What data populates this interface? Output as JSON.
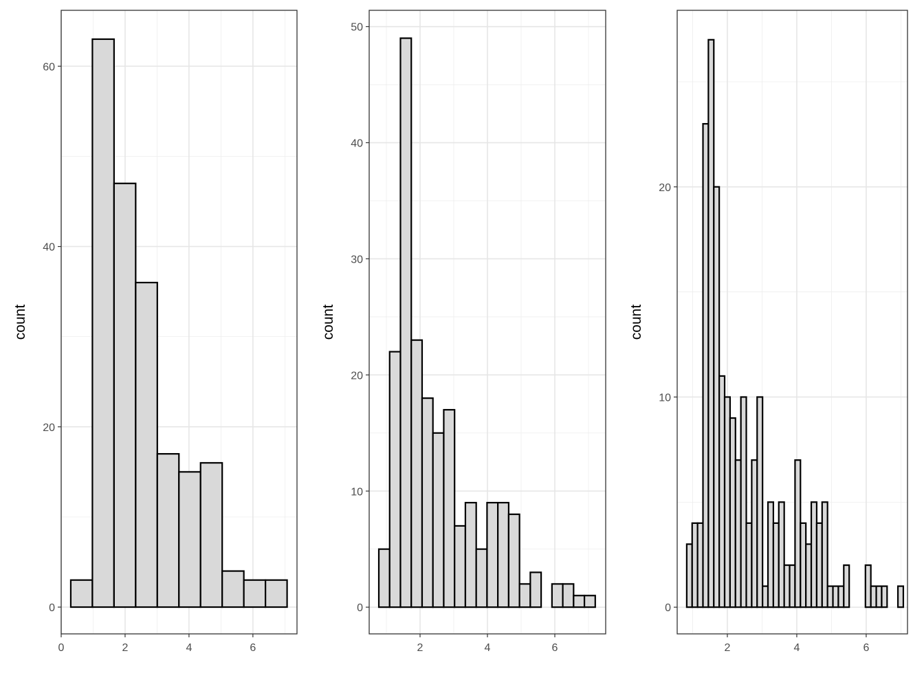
{
  "chart_data": [
    {
      "type": "bar",
      "subtype": "histogram",
      "ylabel": "count",
      "xlabel": "",
      "bin_range": [
        0.3,
        7.07
      ],
      "values": [
        3,
        63,
        47,
        36,
        17,
        15,
        16,
        4,
        3,
        3
      ],
      "xlim": [
        0,
        7.38
      ],
      "ylim": [
        -2.97,
        66.2
      ],
      "xticks": [
        0,
        2,
        4,
        6
      ],
      "yticks": [
        0,
        20,
        40,
        60
      ],
      "grid": true,
      "fill": "#d9d9d9",
      "stroke": "#000000"
    },
    {
      "type": "bar",
      "subtype": "histogram",
      "ylabel": "count",
      "xlabel": "",
      "bin_range": [
        0.776,
        7.2
      ],
      "values": [
        5,
        22,
        49,
        23,
        18,
        15,
        17,
        7,
        9,
        5,
        9,
        9,
        8,
        2,
        3,
        0,
        2,
        2,
        1,
        1
      ],
      "xlim": [
        0.49,
        7.51
      ],
      "ylim": [
        -2.3,
        51.4
      ],
      "xticks": [
        2,
        4,
        6
      ],
      "yticks": [
        0,
        10,
        20,
        30,
        40,
        50
      ],
      "grid": true,
      "fill": "#d9d9d9",
      "stroke": "#000000"
    },
    {
      "type": "bar",
      "subtype": "histogram",
      "ylabel": "count",
      "xlabel": "",
      "bin_range": [
        0.83,
        7.07
      ],
      "values": [
        3,
        4,
        4,
        23,
        27,
        20,
        11,
        10,
        9,
        7,
        10,
        4,
        7,
        10,
        1,
        5,
        4,
        5,
        2,
        2,
        7,
        4,
        3,
        5,
        4,
        5,
        1,
        1,
        1,
        2,
        0,
        0,
        0,
        2,
        1,
        1,
        1,
        0,
        0,
        1
      ],
      "xlim": [
        0.555,
        7.19
      ],
      "ylim": [
        -1.27,
        28.4
      ],
      "xticks": [
        2,
        4,
        6
      ],
      "yticks": [
        0,
        10,
        20
      ],
      "grid": true,
      "fill": "#d9d9d9",
      "stroke": "#000000"
    }
  ]
}
